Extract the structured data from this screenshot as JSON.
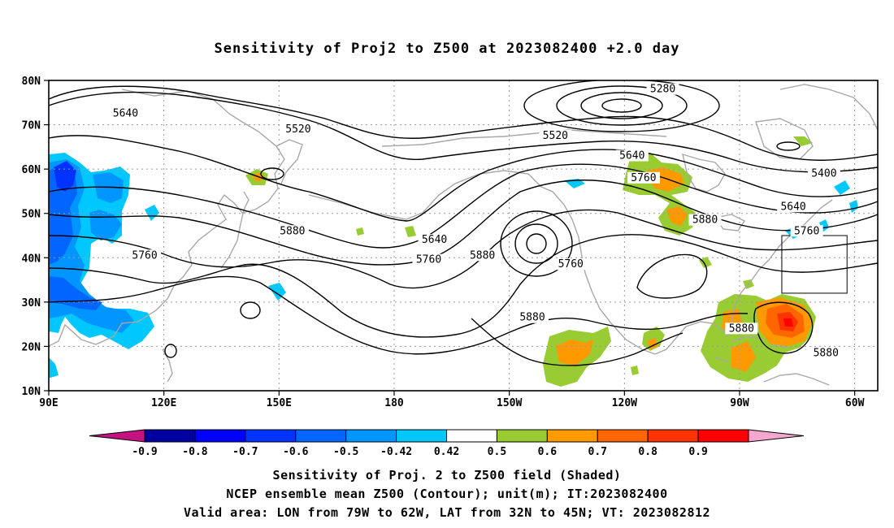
{
  "title": "Sensitivity of Proj2 to Z500 at 2023082400 +2.0 day",
  "map": {
    "lon_range": [
      90,
      306
    ],
    "lat_range": [
      10,
      80
    ],
    "lat_ticks": [
      {
        "value": 80,
        "label": "80N"
      },
      {
        "value": 70,
        "label": "70N"
      },
      {
        "value": 60,
        "label": "60N"
      },
      {
        "value": 50,
        "label": "50N"
      },
      {
        "value": 40,
        "label": "40N"
      },
      {
        "value": 30,
        "label": "30N"
      },
      {
        "value": 20,
        "label": "20N"
      },
      {
        "value": 10,
        "label": "10N"
      }
    ],
    "lon_ticks": [
      {
        "value": 90,
        "label": "90E"
      },
      {
        "value": 120,
        "label": "120E"
      },
      {
        "value": 150,
        "label": "150E"
      },
      {
        "value": 180,
        "label": "180"
      },
      {
        "value": 210,
        "label": "150W"
      },
      {
        "value": 240,
        "label": "120W"
      },
      {
        "value": 270,
        "label": "90W"
      },
      {
        "value": 300,
        "label": "60W"
      }
    ],
    "valid_area": {
      "lon_min": 281,
      "lon_max": 298,
      "lat_min": 32,
      "lat_max": 45
    },
    "contour_labels": [
      {
        "text": "5640",
        "lon": 110,
        "lat": 72
      },
      {
        "text": "5520",
        "lon": 155,
        "lat": 68.5
      },
      {
        "text": "5520",
        "lon": 222,
        "lat": 67
      },
      {
        "text": "5280",
        "lon": 250,
        "lat": 77.5
      },
      {
        "text": "5640",
        "lon": 242,
        "lat": 62.5
      },
      {
        "text": "5760",
        "lon": 245,
        "lat": 57.5
      },
      {
        "text": "5400",
        "lon": 292,
        "lat": 58.5
      },
      {
        "text": "5640",
        "lon": 284,
        "lat": 51
      },
      {
        "text": "5880",
        "lon": 261,
        "lat": 48
      },
      {
        "text": "5760",
        "lon": 287.5,
        "lat": 45.5
      },
      {
        "text": "5880",
        "lon": 153.5,
        "lat": 45.5
      },
      {
        "text": "5640",
        "lon": 190.5,
        "lat": 43.5
      },
      {
        "text": "5760",
        "lon": 189,
        "lat": 39
      },
      {
        "text": "5880",
        "lon": 203,
        "lat": 40
      },
      {
        "text": "5760",
        "lon": 226,
        "lat": 38
      },
      {
        "text": "5760",
        "lon": 115,
        "lat": 40
      },
      {
        "text": "5880",
        "lon": 216,
        "lat": 26
      },
      {
        "text": "5880",
        "lon": 270.5,
        "lat": 23.5
      },
      {
        "text": "5880",
        "lon": 292.5,
        "lat": 18
      }
    ]
  },
  "colorbar": {
    "left_arrow_color": "#c4127e",
    "right_arrow_color": "#f4a8cf",
    "colors": [
      "#0000a0",
      "#0000ff",
      "#0033ff",
      "#0066ff",
      "#0095ff",
      "#00c8ff",
      "#ffffff",
      "#99cc33",
      "#ff9900",
      "#ff6600",
      "#ff3300",
      "#ff0000"
    ],
    "labels": [
      "-0.9",
      "-0.8",
      "-0.7",
      "-0.6",
      "-0.5",
      "-0.42",
      "0.42",
      "0.5",
      "0.6",
      "0.7",
      "0.8",
      "0.9"
    ]
  },
  "captions": [
    "Sensitivity of Proj. 2 to Z500 field (Shaded)",
    "NCEP ensemble mean Z500 (Contour); unit(m); IT:2023082400",
    "Valid area: LON from 79W to 62W, LAT from 32N to 45N; VT: 2023082812"
  ]
}
